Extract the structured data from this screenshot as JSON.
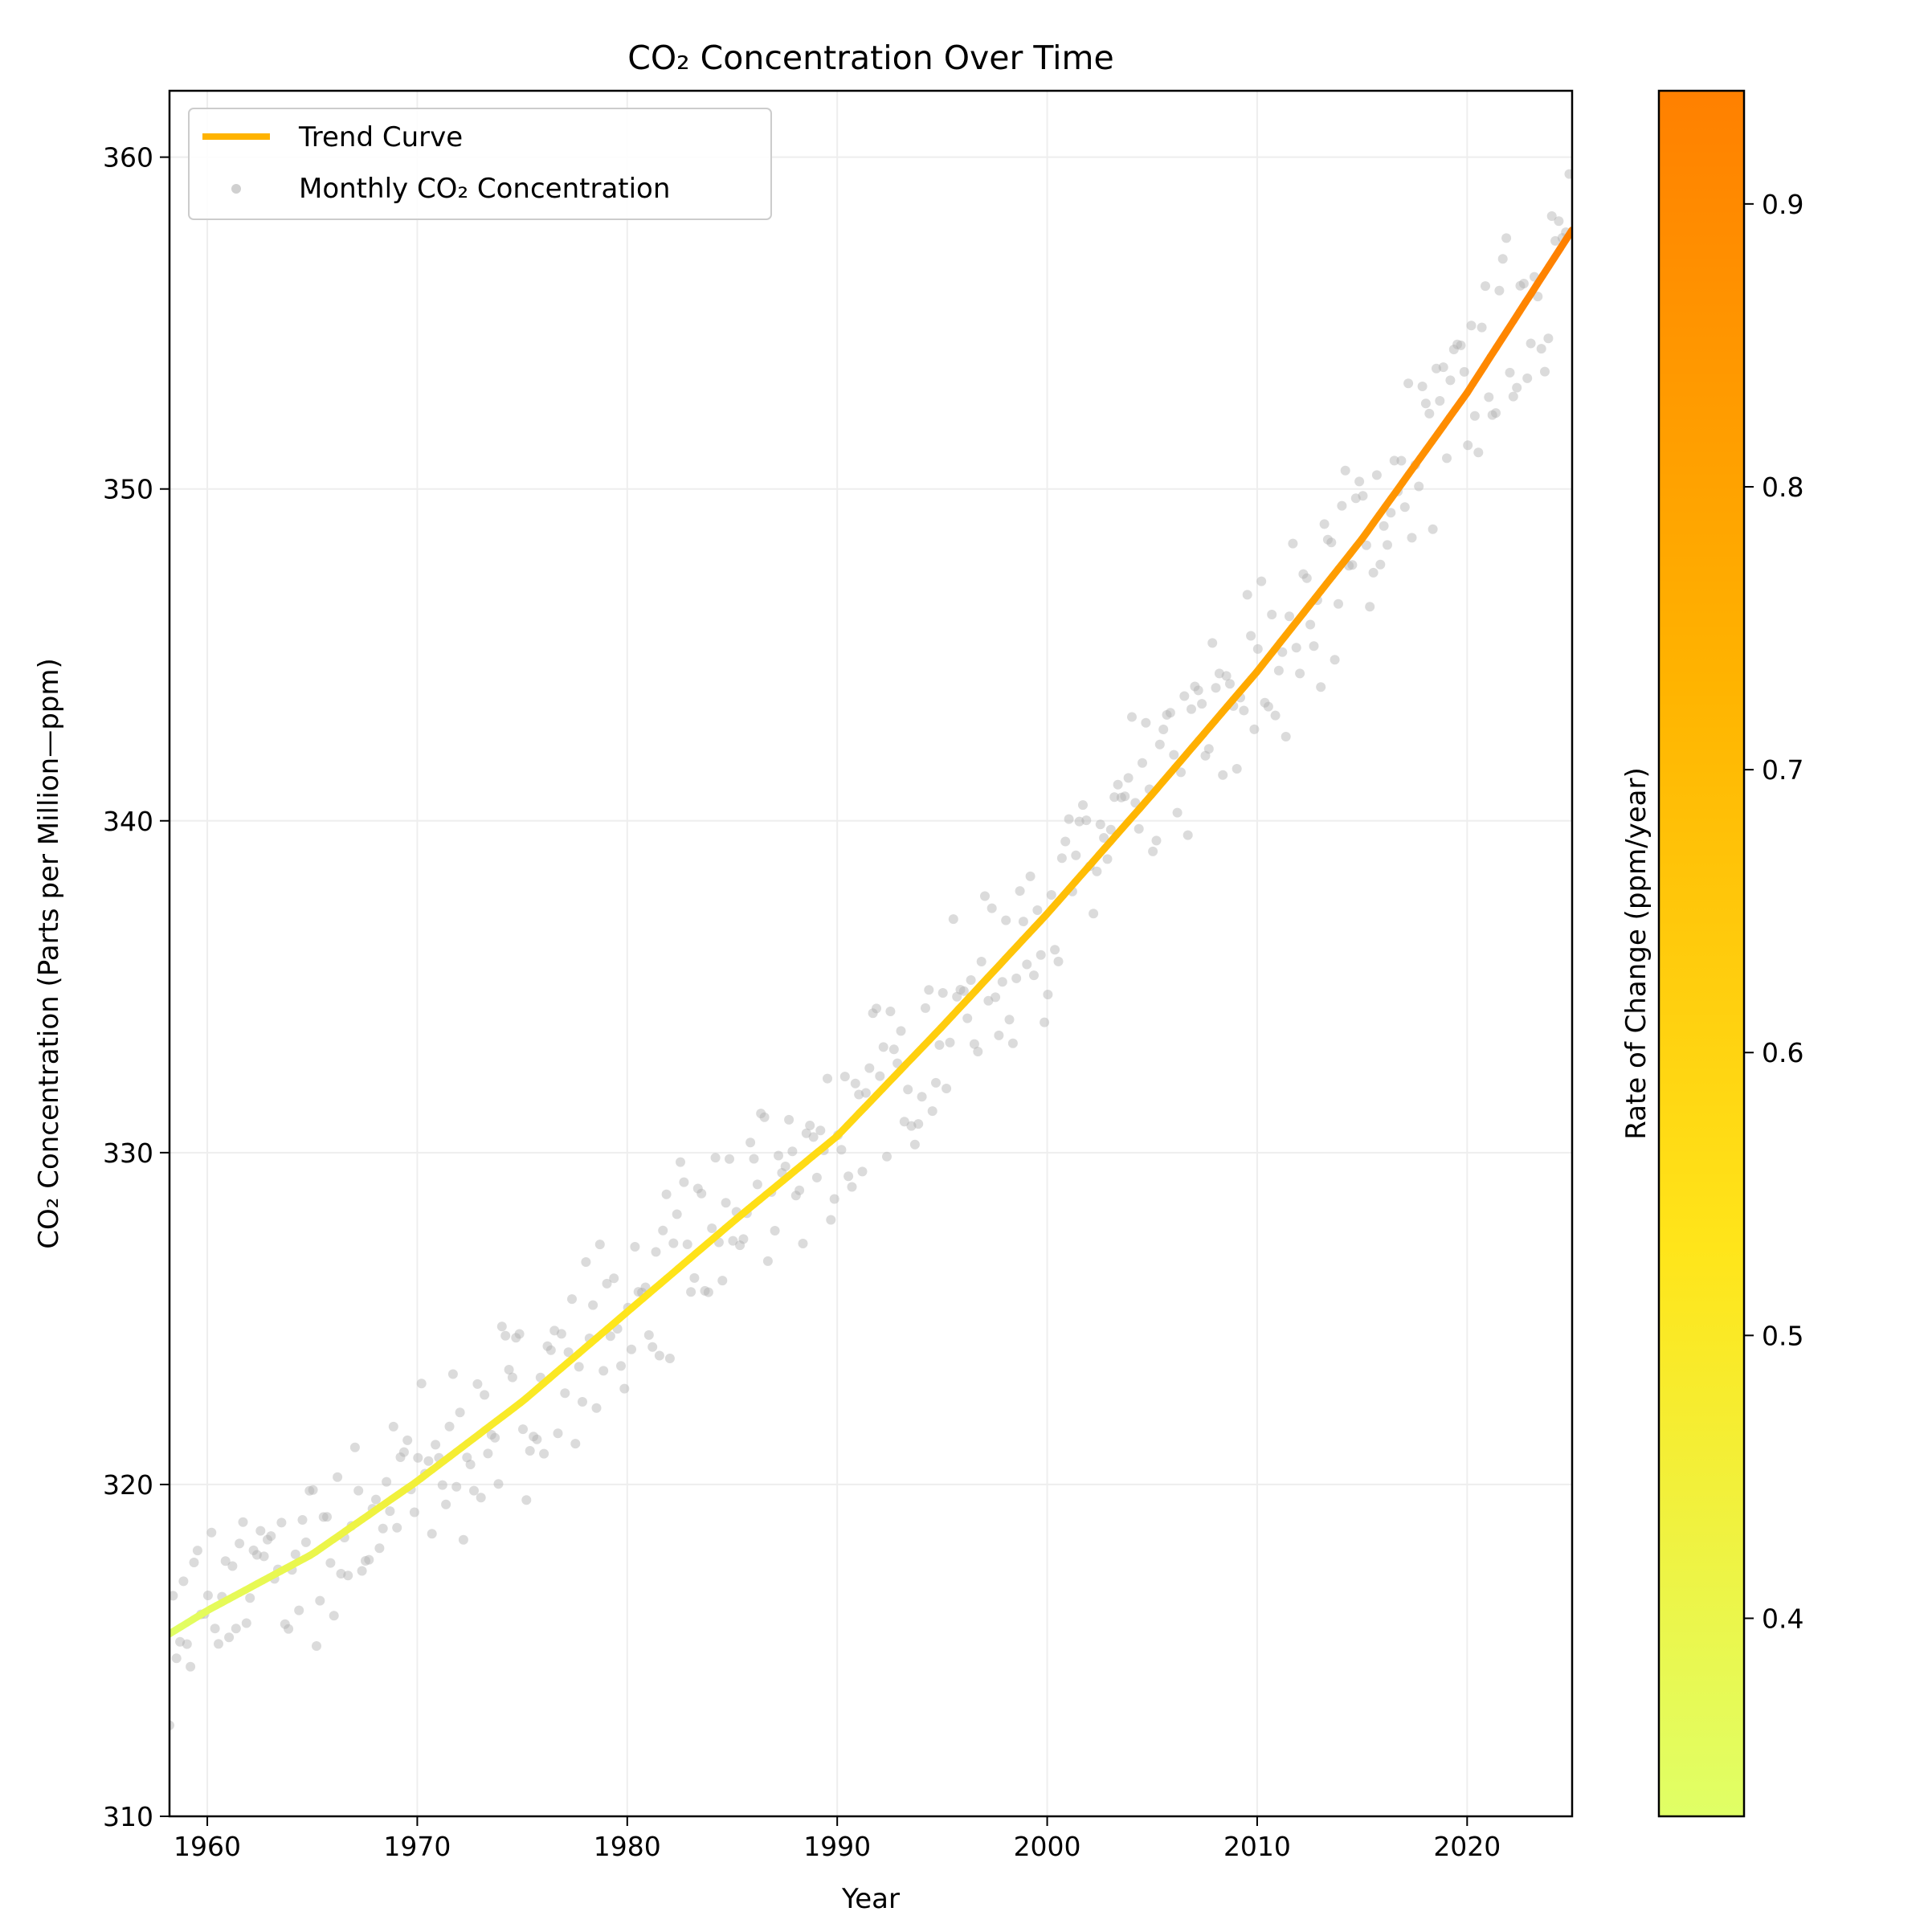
{
  "chart_data": {
    "type": "line",
    "title": "CO₂ Concentration Over Time",
    "xlabel": "Year",
    "ylabel": "CO₂ Concentration (Parts per Million—ppm)",
    "xlim": [
      1958.2,
      2025.0
    ],
    "ylim": [
      310,
      362
    ],
    "x_ticks": [
      1960,
      1970,
      1980,
      1990,
      2000,
      2010,
      2020
    ],
    "x_tick_labels": [
      "1960",
      "1970",
      "1980",
      "1990",
      "2000",
      "2010",
      "2020"
    ],
    "y_ticks": [
      310,
      320,
      330,
      340,
      350,
      360
    ],
    "y_tick_labels": [
      "310",
      "320",
      "330",
      "340",
      "350",
      "360"
    ],
    "grid": true,
    "legend_position": "top-left",
    "legend": [
      "Trend Curve",
      "Monthly CO₂ Concentration"
    ],
    "series": [
      {
        "name": "Trend Curve",
        "kind": "line",
        "color_by": "rate of change",
        "x": [
          1958.2,
          1960,
          1965,
          1970,
          1975,
          1980,
          1985,
          1990,
          1995,
          2000,
          2005,
          2010,
          2015,
          2020,
          2025
        ],
        "y": [
          315.5,
          316.2,
          317.9,
          320.1,
          322.5,
          325.2,
          327.9,
          330.5,
          333.8,
          337.2,
          340.8,
          344.5,
          348.5,
          352.9,
          357.8
        ],
        "rate": [
          0.33,
          0.36,
          0.4,
          0.45,
          0.5,
          0.53,
          0.55,
          0.58,
          0.63,
          0.68,
          0.73,
          0.78,
          0.84,
          0.9,
          0.94
        ]
      },
      {
        "name": "Monthly CO₂ Concentration",
        "kind": "scatter",
        "color": "#b0b0b0",
        "note": "scattered monthly points around the trend, spread approx ±2.5 ppm"
      }
    ],
    "colorbar": {
      "label": "Rate of Change (ppm/year)",
      "min": 0.33,
      "max": 0.94,
      "ticks": [
        0.4,
        0.5,
        0.6,
        0.7,
        0.8,
        0.9
      ],
      "tick_labels": [
        "0.4",
        "0.5",
        "0.6",
        "0.7",
        "0.8",
        "0.9"
      ],
      "colors": [
        "#e0ff66",
        "#ffe51a",
        "#ffb300",
        "#ff8000"
      ]
    }
  }
}
